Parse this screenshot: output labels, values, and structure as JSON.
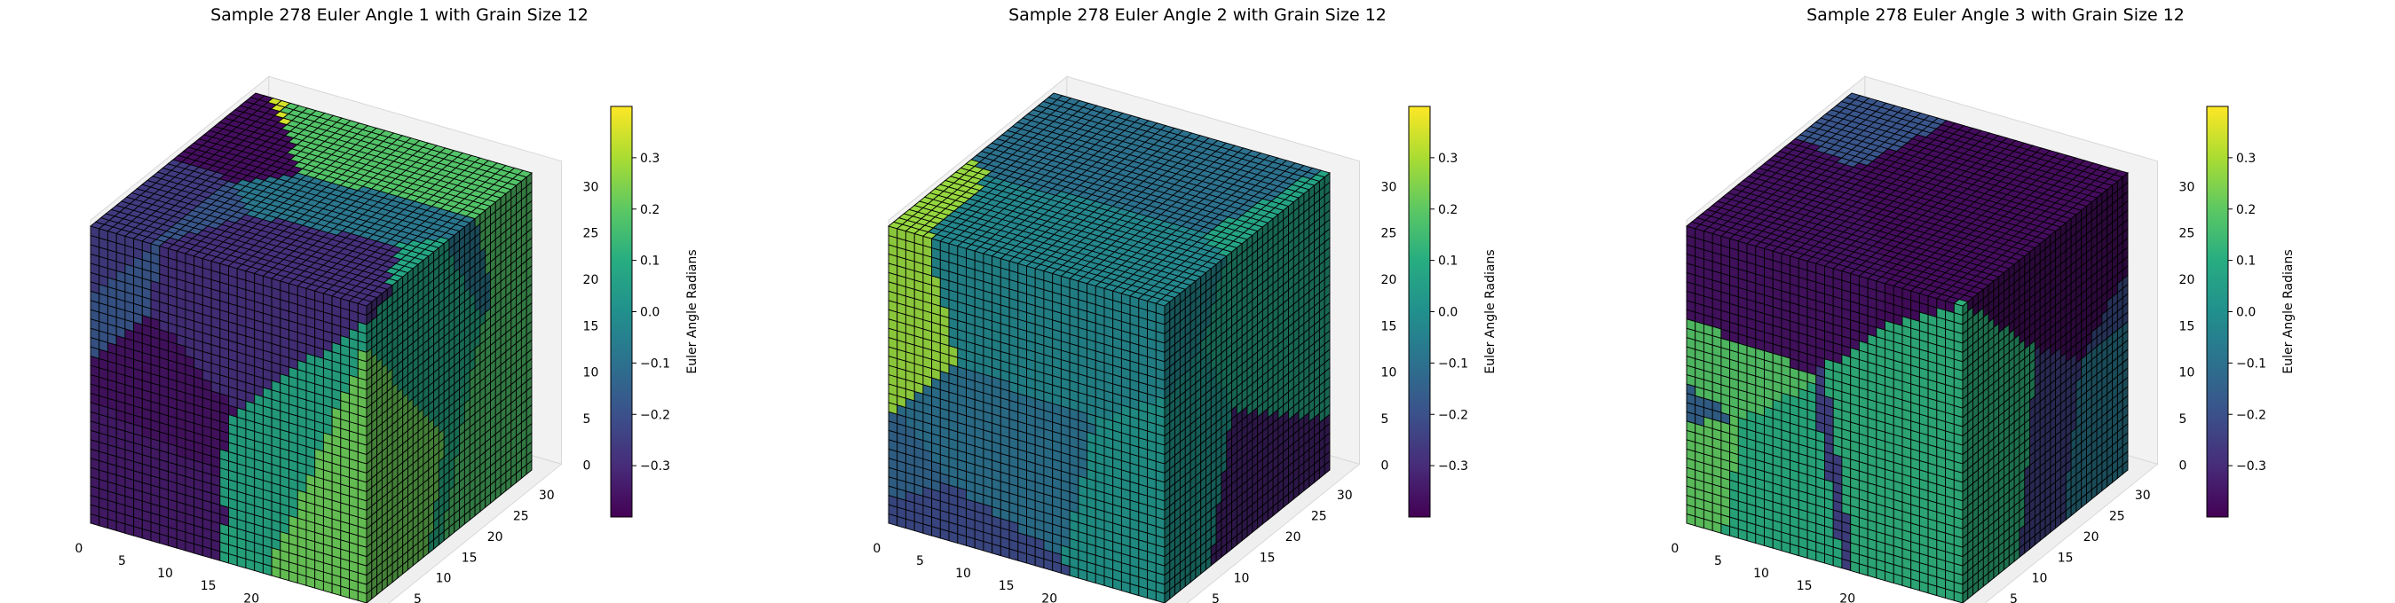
{
  "chart_data": [
    {
      "type": "voxel-3d",
      "title": "Sample 278 Euler Angle 1 with Grain Size 12",
      "grid_size": 32,
      "x_ticks": [
        "0",
        "5",
        "10",
        "15",
        "20",
        "25",
        "30"
      ],
      "y_ticks": [
        "0",
        "5",
        "10",
        "15",
        "20",
        "25",
        "30"
      ],
      "z_ticks": [
        "0",
        "5",
        "10",
        "15",
        "20",
        "25",
        "30"
      ],
      "colorbar": {
        "label": "Euler Angle Radians",
        "range": [
          -0.4,
          0.4
        ],
        "ticks": [
          "0.3",
          "0.2",
          "0.1",
          "0.0",
          "−0.1",
          "−0.2",
          "−0.3"
        ]
      },
      "seed": 11
    },
    {
      "type": "voxel-3d",
      "title": "Sample 278 Euler Angle 2 with Grain Size 12",
      "grid_size": 32,
      "x_ticks": [
        "0",
        "5",
        "10",
        "15",
        "20",
        "25",
        "30"
      ],
      "y_ticks": [
        "0",
        "5",
        "10",
        "15",
        "20",
        "25",
        "30"
      ],
      "z_ticks": [
        "0",
        "5",
        "10",
        "15",
        "20",
        "25",
        "30"
      ],
      "colorbar": {
        "label": "Euler Angle Radians",
        "range": [
          -0.4,
          0.4
        ],
        "ticks": [
          "0.3",
          "0.2",
          "0.1",
          "0.0",
          "−0.1",
          "−0.2",
          "−0.3"
        ]
      },
      "seed": 27
    },
    {
      "type": "voxel-3d",
      "title": "Sample 278 Euler Angle 3 with Grain Size 12",
      "grid_size": 32,
      "x_ticks": [
        "0",
        "5",
        "10",
        "15",
        "20",
        "25",
        "30"
      ],
      "y_ticks": [
        "0",
        "5",
        "10",
        "15",
        "20",
        "25",
        "30"
      ],
      "z_ticks": [
        "0",
        "5",
        "10",
        "15",
        "20",
        "25",
        "30"
      ],
      "colorbar": {
        "label": "Euler Angle Radians",
        "range": [
          -0.4,
          0.4
        ],
        "ticks": [
          "0.3",
          "0.2",
          "0.1",
          "0.0",
          "−0.1",
          "−0.2",
          "−0.3"
        ]
      },
      "seed": 53
    }
  ]
}
